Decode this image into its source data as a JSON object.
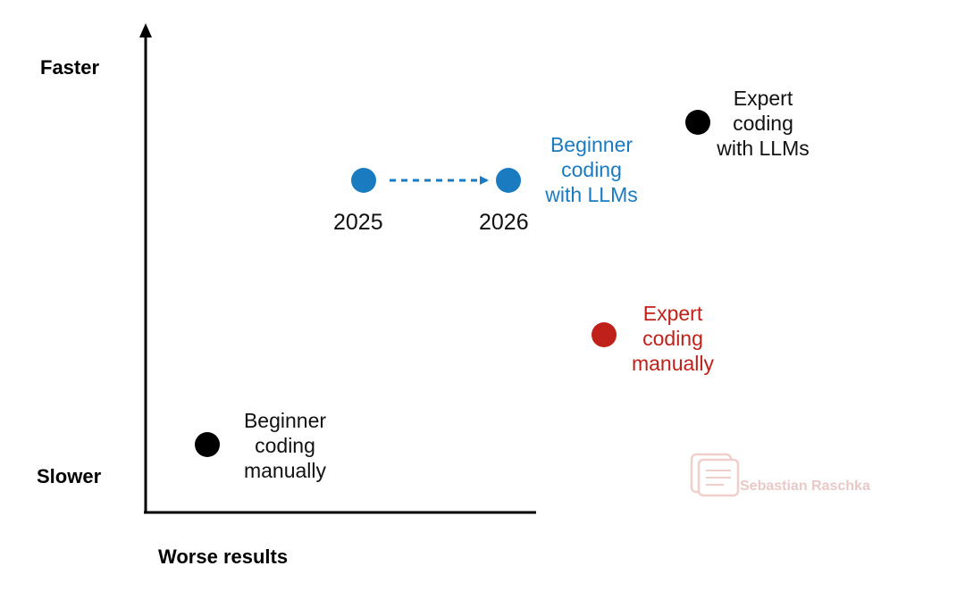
{
  "axes": {
    "y_top": "Faster",
    "y_bottom": "Slower",
    "x_left": "Worse results"
  },
  "points": {
    "beginner_manual": {
      "line1": "Beginner",
      "line2": "coding",
      "line3": "manually",
      "color": "#000000"
    },
    "expert_llm": {
      "line1": "Expert",
      "line2": "coding",
      "line3": "with LLMs",
      "color": "#000000"
    },
    "beginner_llm": {
      "line1": "Beginner",
      "line2": "coding",
      "line3": "with LLMs",
      "color": "#1a7bc0"
    },
    "expert_manual": {
      "line1": "Expert",
      "line2": "coding",
      "line3": "manually",
      "color": "#c0201a"
    }
  },
  "transition": {
    "from_year": "2025",
    "to_year": "2026"
  },
  "watermark": {
    "text": "Sebastian Raschka",
    "icon": "notebook-logo-icon"
  }
}
